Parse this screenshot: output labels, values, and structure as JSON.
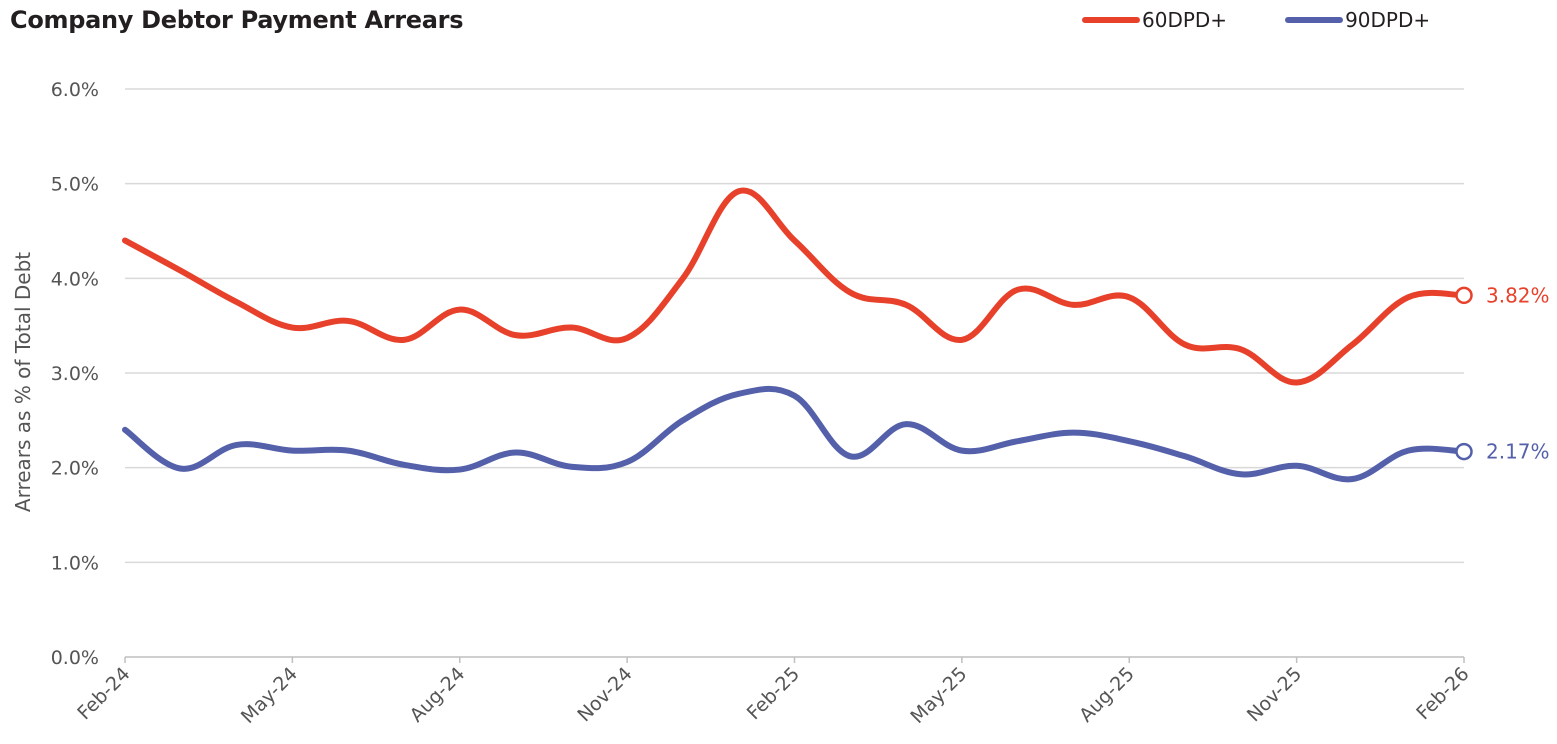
{
  "title": "Company Debtor Payment Arrears",
  "legend": [
    {
      "name": "60DPD+",
      "color": "#e8412b"
    },
    {
      "name": "90DPD+",
      "color": "#5461aa"
    }
  ],
  "chart_data": {
    "type": "line",
    "title": "Company Debtor Payment Arrears",
    "xlabel": "",
    "ylabel": "Arrears as % of Total Debt",
    "ylim": [
      0,
      6
    ],
    "yticks": [
      "0.0%",
      "1.0%",
      "2.0%",
      "3.0%",
      "4.0%",
      "5.0%",
      "6.0%"
    ],
    "x": [
      "Feb-24",
      "Mar-24",
      "Apr-24",
      "May-24",
      "Jun-24",
      "Jul-24",
      "Aug-24",
      "Sep-24",
      "Oct-24",
      "Nov-24",
      "Dec-24",
      "Jan-25",
      "Feb-25",
      "Mar-25",
      "Apr-25",
      "May-25",
      "Jun-25",
      "Jul-25",
      "Aug-25",
      "Sep-25",
      "Oct-25",
      "Nov-25",
      "Dec-25",
      "Jan-26",
      "Feb-26"
    ],
    "xtick_labels": [
      "Feb-24",
      "May-24",
      "Aug-24",
      "Nov-24",
      "Feb-25",
      "May-25",
      "Aug-25",
      "Nov-25",
      "Feb-26"
    ],
    "grid": true,
    "legend_position": "top-right",
    "series": [
      {
        "name": "60DPD+",
        "color": "#e8412b",
        "values": [
          4.4,
          4.08,
          3.75,
          3.48,
          3.55,
          3.35,
          3.67,
          3.4,
          3.48,
          3.37,
          4.0,
          4.92,
          4.4,
          3.85,
          3.72,
          3.35,
          3.88,
          3.72,
          3.8,
          3.3,
          3.25,
          2.9,
          3.3,
          3.8,
          3.82
        ],
        "end_label": "3.82%"
      },
      {
        "name": "90DPD+",
        "color": "#5461aa",
        "values": [
          2.4,
          1.99,
          2.24,
          2.18,
          2.18,
          2.03,
          1.98,
          2.16,
          2.01,
          2.06,
          2.5,
          2.78,
          2.76,
          2.12,
          2.46,
          2.18,
          2.28,
          2.37,
          2.28,
          2.12,
          1.93,
          2.02,
          1.88,
          2.18,
          2.17
        ],
        "end_label": "2.17%"
      }
    ]
  }
}
